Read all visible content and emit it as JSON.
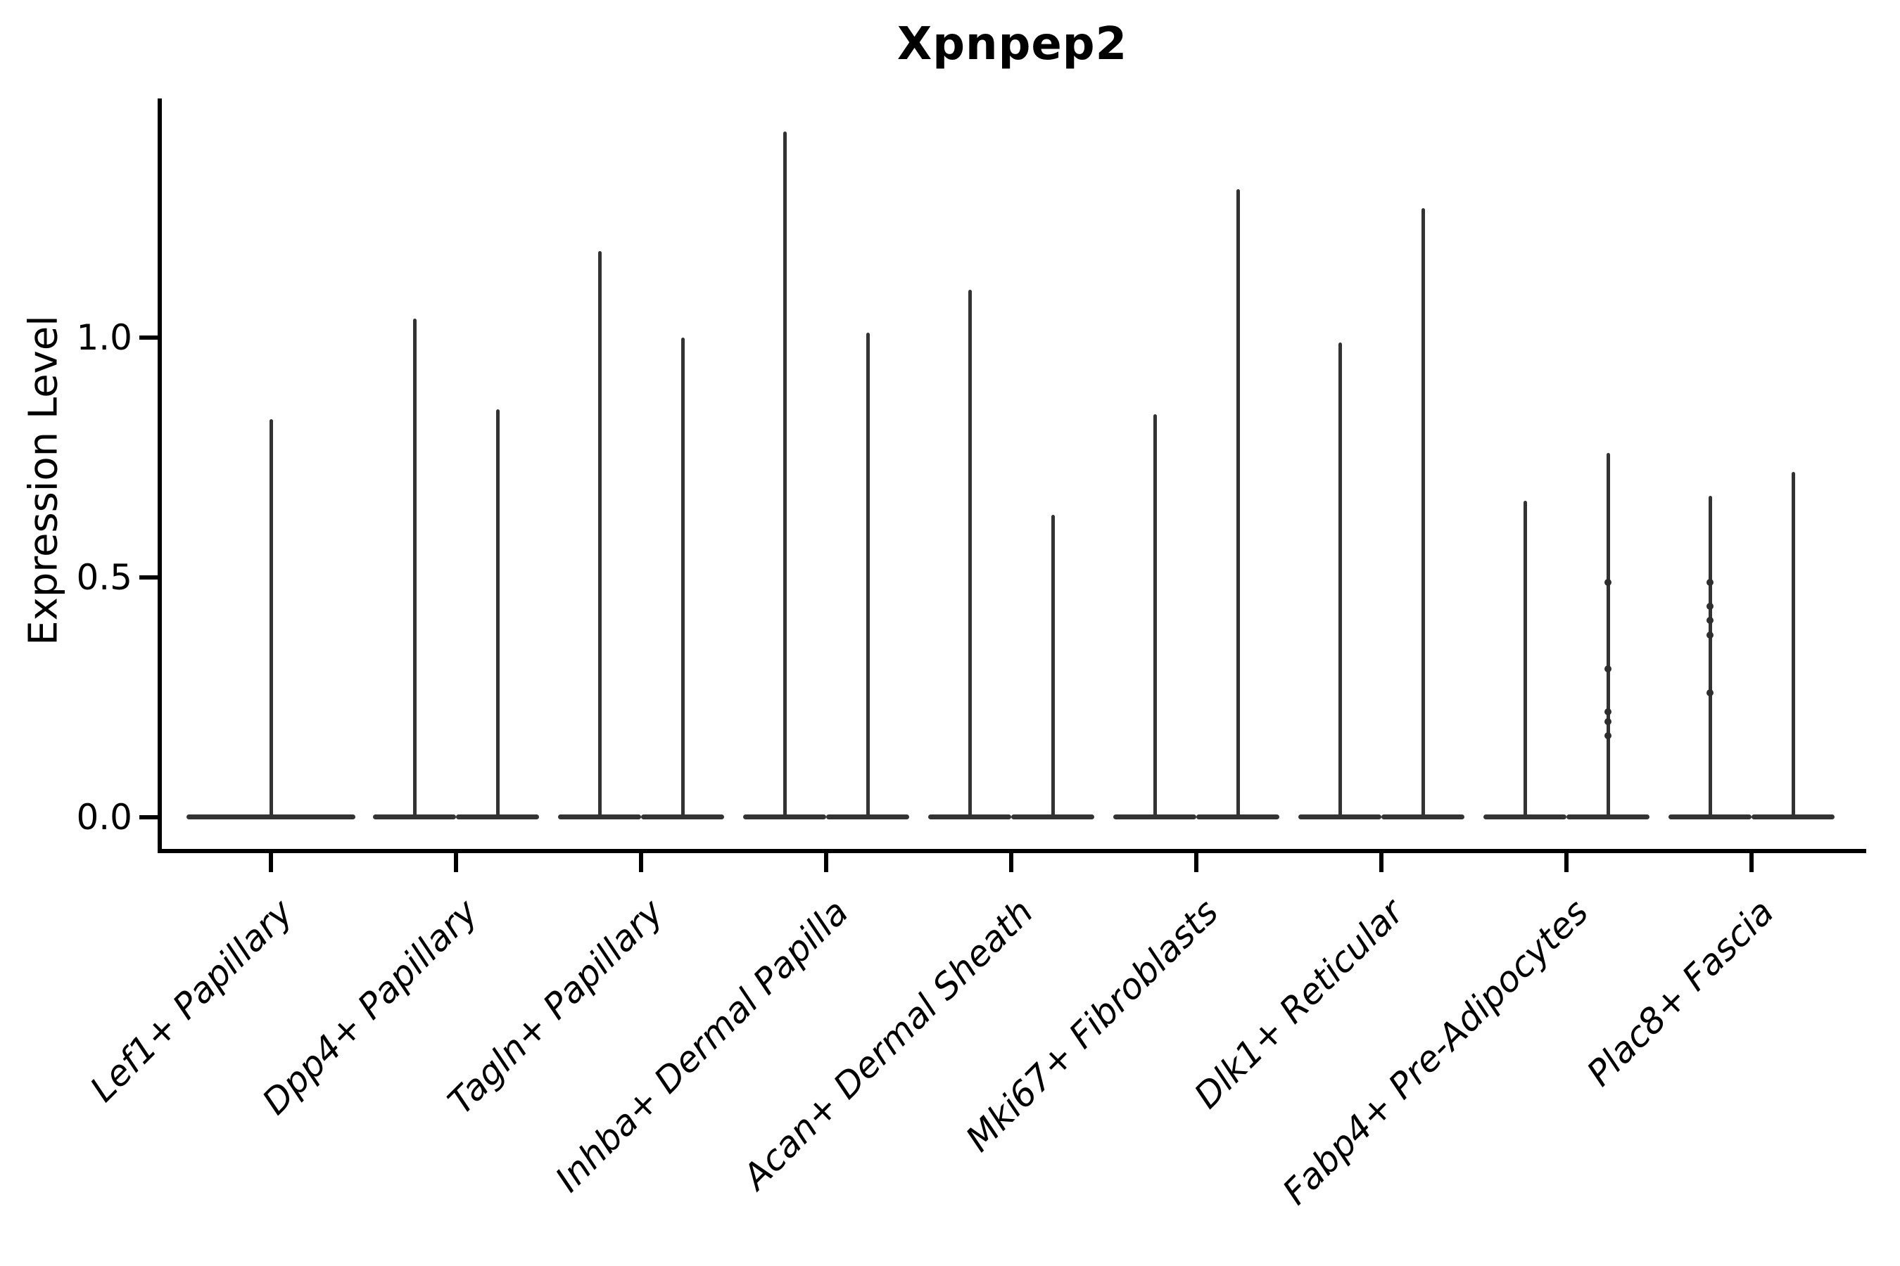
{
  "chart_data": {
    "type": "violin",
    "title": "Xpnpep2",
    "ylabel": "Expression Level",
    "xlabel": "",
    "background": "#ffffff",
    "violin_color": "#333333",
    "axis_color": "#000000",
    "legend": "none",
    "grid": false,
    "yticks": [
      "0.0",
      "0.5",
      "1.0"
    ],
    "ytick_values": [
      0.0,
      0.5,
      1.0
    ],
    "ylim": [
      -0.07,
      1.52
    ],
    "x_label_rotation_deg": 45,
    "categories": [
      "Lef1+ Papillary",
      "Dpp4+ Papillary",
      "Tagln+ Papillary",
      "Inhba+ Dermal Papilla",
      "Acan+ Dermal Sheath",
      "Mki67+ Fibroblasts",
      "Dlk1+ Reticular",
      "Fabp4+ Pre-Adipocytes",
      "Plac8+ Fascia"
    ],
    "violins": [
      {
        "category_index": 0,
        "category": "Lef1+ Papillary",
        "position": "center",
        "max_expression": 0.83,
        "jitter_points": []
      },
      {
        "category_index": 1,
        "category": "Dpp4+ Papillary",
        "position": "left",
        "max_expression": 1.04,
        "jitter_points": []
      },
      {
        "category_index": 1,
        "category": "Dpp4+ Papillary",
        "position": "right",
        "max_expression": 0.85,
        "jitter_points": []
      },
      {
        "category_index": 2,
        "category": "Tagln+ Papillary",
        "position": "left",
        "max_expression": 1.18,
        "jitter_points": []
      },
      {
        "category_index": 2,
        "category": "Tagln+ Papillary",
        "position": "right",
        "max_expression": 1.0,
        "jitter_points": []
      },
      {
        "category_index": 3,
        "category": "Inhba+ Dermal Papilla",
        "position": "left",
        "max_expression": 1.43,
        "jitter_points": []
      },
      {
        "category_index": 3,
        "category": "Inhba+ Dermal Papilla",
        "position": "right",
        "max_expression": 1.01,
        "jitter_points": []
      },
      {
        "category_index": 4,
        "category": "Acan+ Dermal Sheath",
        "position": "left",
        "max_expression": 1.1,
        "jitter_points": []
      },
      {
        "category_index": 4,
        "category": "Acan+ Dermal Sheath",
        "position": "right",
        "max_expression": 0.63,
        "jitter_points": []
      },
      {
        "category_index": 5,
        "category": "Mki67+ Fibroblasts",
        "position": "left",
        "max_expression": 0.84,
        "jitter_points": []
      },
      {
        "category_index": 5,
        "category": "Mki67+ Fibroblasts",
        "position": "right",
        "max_expression": 1.31,
        "jitter_points": []
      },
      {
        "category_index": 6,
        "category": "Dlk1+ Reticular",
        "position": "left",
        "max_expression": 0.99,
        "jitter_points": []
      },
      {
        "category_index": 6,
        "category": "Dlk1+ Reticular",
        "position": "right",
        "max_expression": 1.27,
        "jitter_points": []
      },
      {
        "category_index": 7,
        "category": "Fabp4+ Pre-Adipocytes",
        "position": "left",
        "max_expression": 0.66,
        "jitter_points": []
      },
      {
        "category_index": 7,
        "category": "Fabp4+ Pre-Adipocytes",
        "position": "right",
        "max_expression": 0.76,
        "jitter_points": [
          0.49,
          0.31,
          0.22,
          0.2,
          0.17
        ]
      },
      {
        "category_index": 8,
        "category": "Plac8+ Fascia",
        "position": "left",
        "max_expression": 0.67,
        "jitter_points": [
          0.49,
          0.44,
          0.41,
          0.38,
          0.26
        ]
      },
      {
        "category_index": 8,
        "category": "Plac8+ Fascia",
        "position": "right",
        "max_expression": 0.72,
        "jitter_points": []
      }
    ]
  }
}
